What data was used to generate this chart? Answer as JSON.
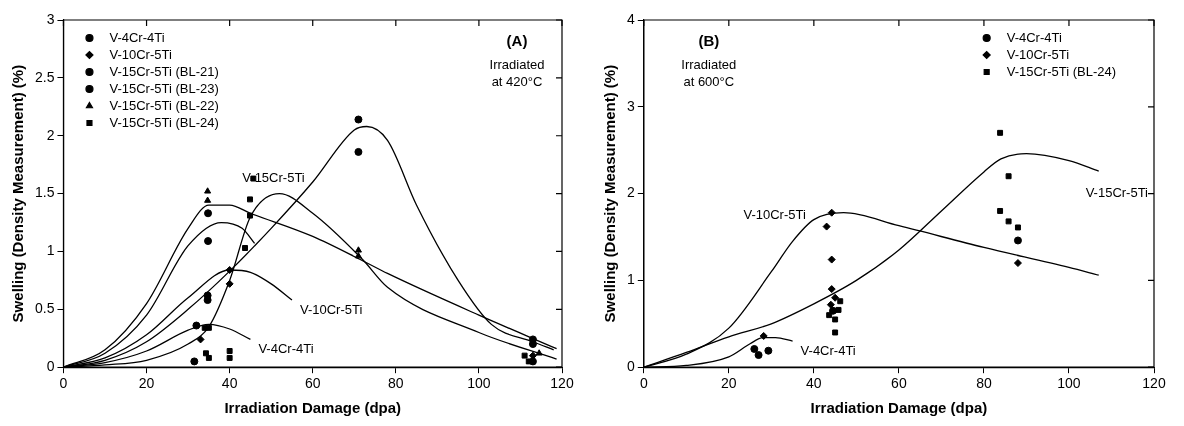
{
  "chart_data": [
    {
      "type": "scatter",
      "xlabel": "Irradiation Damage (dpa)",
      "ylabel": "Swelling (Density Measurement) (%)",
      "xlim": [
        0,
        120
      ],
      "xticks": [
        0,
        20,
        40,
        60,
        80,
        100,
        120
      ],
      "ylim": [
        0,
        3
      ],
      "yticks": [
        0,
        0.5,
        1,
        1.5,
        2,
        2.5,
        3
      ],
      "grid": false,
      "legend": "top left",
      "annotations": [
        "(A)",
        "Irradiated",
        "at 420°C",
        {
          "text": "V-15Cr-5Ti",
          "x": 60,
          "y": 1.6
        },
        {
          "text": "V-10Cr-5Ti",
          "x": 55,
          "y": 0.58
        },
        {
          "text": "V-4Cr-4Ti",
          "x": 45,
          "y": 0.24
        }
      ],
      "series": [
        {
          "name": "V-4Cr-4Ti",
          "color": "#000000",
          "marker": "circle",
          "x": [
            31.5,
            32,
            113
          ],
          "values": [
            0.05,
            0.36,
            0.05
          ]
        },
        {
          "name": "V-10Cr-5Ti",
          "color": "#000000",
          "marker": "diamond",
          "x": [
            33,
            40,
            40,
            113
          ],
          "values": [
            0.24,
            0.72,
            0.84,
            0.1
          ]
        },
        {
          "name": "V-15Cr-5Ti (BL-21)",
          "color": "#000000",
          "marker": "circle",
          "x": [
            34.7,
            34.7,
            71,
            113
          ],
          "values": [
            0.58,
            0.62,
            1.86,
            0.2
          ]
        },
        {
          "name": "V-15Cr-5Ti (BL-23)",
          "color": "#000000",
          "marker": "circle",
          "x": [
            34.8,
            34.8,
            71,
            113
          ],
          "values": [
            1.09,
            1.33,
            2.14,
            0.24
          ]
        },
        {
          "name": "V-15Cr-5Ti (BL-22)",
          "color": "#000000",
          "marker": "triangle",
          "x": [
            34.7,
            34.7,
            71,
            71,
            114.5
          ],
          "values": [
            1.52,
            1.44,
            1.01,
            0.96,
            0.12
          ]
        },
        {
          "name": "V-15Cr-5Ti (BL-24)",
          "color": "#000000",
          "marker": "square",
          "x": [
            34,
            35,
            34.3,
            35,
            40,
            40,
            43.7,
            44.9,
            44.9,
            45.7,
            112,
            111
          ],
          "values": [
            0.34,
            0.34,
            0.12,
            0.08,
            0.14,
            0.08,
            1.03,
            1.31,
            1.45,
            1.63,
            0.05,
            0.1
          ]
        },
        {
          "type": "line",
          "color": "#000000",
          "marker": "none",
          "x": [
            0,
            10,
            20,
            30,
            35,
            40,
            45
          ],
          "values": [
            0,
            0.04,
            0.14,
            0.32,
            0.37,
            0.33,
            0.24
          ]
        },
        {
          "type": "line",
          "color": "#000000",
          "marker": "none",
          "x": [
            0,
            10,
            20,
            30,
            40,
            45,
            50,
            55
          ],
          "values": [
            0,
            0.08,
            0.28,
            0.6,
            0.84,
            0.82,
            0.72,
            0.58
          ]
        },
        {
          "type": "line",
          "color": "#000000",
          "marker": "none",
          "x": [
            0,
            10,
            20,
            30,
            35,
            40,
            45,
            60,
            72,
            78,
            100,
            118.7
          ],
          "values": [
            0,
            0.15,
            0.55,
            1.2,
            1.4,
            1.4,
            1.33,
            1.13,
            0.92,
            0.81,
            0.45,
            0.16
          ]
        },
        {
          "type": "line",
          "color": "#000000",
          "marker": "none",
          "x": [
            0,
            10,
            20,
            30,
            38,
            43,
            46
          ],
          "values": [
            0,
            0.12,
            0.45,
            1.05,
            1.25,
            1.2,
            1.07
          ]
        },
        {
          "type": "line",
          "color": "#000000",
          "marker": "none",
          "x": [
            0,
            10,
            20,
            30,
            35,
            40,
            45,
            52,
            60,
            72,
            78,
            100,
            118.7
          ],
          "values": [
            0,
            0.02,
            0.06,
            0.2,
            0.35,
            0.75,
            1.3,
            1.5,
            1.33,
            0.93,
            0.69,
            0.3,
            0.07
          ]
        },
        {
          "type": "line",
          "color": "#000000",
          "marker": "none",
          "x": [
            0,
            10,
            20,
            30,
            40,
            50,
            60,
            70,
            73,
            78,
            85,
            95,
            103,
            113,
            118
          ],
          "values": [
            0,
            0.06,
            0.22,
            0.5,
            0.83,
            1.2,
            1.6,
            2.05,
            2.08,
            1.96,
            1.4,
            0.75,
            0.37,
            0.22,
            0.15
          ]
        }
      ]
    },
    {
      "type": "scatter",
      "xlabel": "Irradiation Damage (dpa)",
      "ylabel": "Swelling (Density Measurement) (%)",
      "xlim": [
        0,
        120
      ],
      "xticks": [
        0,
        20,
        40,
        60,
        80,
        100,
        120
      ],
      "ylim": [
        0,
        4
      ],
      "yticks": [
        0,
        1,
        2,
        3,
        4
      ],
      "grid": false,
      "legend": "top right",
      "annotations": [
        "(B)",
        "Irradiated",
        "at 600°C",
        {
          "text": "V-10Cr-5Ti",
          "x": 40,
          "y": 1.7
        },
        {
          "text": "V-15Cr-5Ti",
          "x": 107,
          "y": 2.26
        },
        {
          "text": "V-4Cr-4Ti",
          "x": 35,
          "y": 0.3
        }
      ],
      "series": [
        {
          "name": "V-4Cr-4Ti",
          "color": "#000000",
          "marker": "circle",
          "x": [
            26,
            27,
            29.3,
            44.5,
            88
          ],
          "values": [
            0.21,
            0.14,
            0.19,
            0.65,
            1.46
          ]
        },
        {
          "name": "V-10Cr-5Ti",
          "color": "#000000",
          "marker": "diamond",
          "x": [
            28.2,
            43,
            44.2,
            44.2,
            44.2,
            45,
            44,
            88
          ],
          "values": [
            0.36,
            1.62,
            1.78,
            1.24,
            0.9,
            0.8,
            0.72,
            1.2
          ]
        },
        {
          "name": "V-15Cr-5Ti (BL-24)",
          "color": "#000000",
          "marker": "square",
          "x": [
            83.8,
            85.8,
            83.8,
            85.8,
            88,
            43.6,
            45,
            45,
            46.2,
            45.8
          ],
          "values": [
            2.7,
            2.2,
            1.8,
            1.68,
            1.61,
            0.6,
            0.55,
            0.4,
            0.76,
            0.66
          ]
        },
        {
          "type": "line",
          "color": "#000000",
          "marker": "none",
          "x": [
            0,
            10,
            20,
            30,
            35,
            40,
            47,
            60,
            80,
            100,
            107
          ],
          "values": [
            0,
            0.15,
            0.45,
            1.1,
            1.45,
            1.7,
            1.78,
            1.63,
            1.38,
            1.15,
            1.06
          ]
        },
        {
          "type": "line",
          "color": "#000000",
          "marker": "none",
          "x": [
            0,
            10,
            20,
            30,
            40,
            50,
            60,
            70,
            80,
            84,
            90,
            100,
            107
          ],
          "values": [
            0,
            0.17,
            0.35,
            0.5,
            0.73,
            1.0,
            1.35,
            1.8,
            2.25,
            2.4,
            2.46,
            2.38,
            2.26
          ]
        },
        {
          "type": "line",
          "color": "#000000",
          "marker": "none",
          "x": [
            0,
            10,
            20,
            25,
            28,
            31,
            35
          ],
          "values": [
            0,
            0.02,
            0.12,
            0.27,
            0.34,
            0.34,
            0.3
          ]
        }
      ]
    }
  ]
}
